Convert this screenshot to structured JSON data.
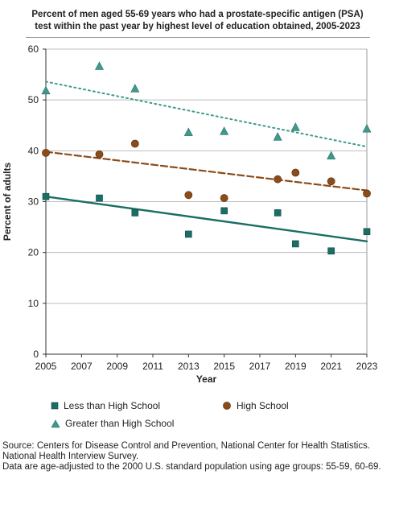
{
  "chart_data": {
    "type": "scatter",
    "title_lines": [
      "Percent of men aged 55-69 years who had a prostate-specific antigen (PSA)",
      "test within the past year by highest level of education obtained, 2005-2023"
    ],
    "xlabel": "Year",
    "ylabel": "Percent of adults",
    "xlim": [
      2005,
      2023
    ],
    "ylim": [
      0,
      60
    ],
    "x_ticks": [
      2005,
      2007,
      2009,
      2011,
      2013,
      2015,
      2017,
      2019,
      2021,
      2023
    ],
    "y_ticks": [
      0,
      10,
      20,
      30,
      40,
      50,
      60
    ],
    "grid": "horizontal",
    "legend_position": "bottom",
    "series": [
      {
        "name": "Less than High School",
        "marker": "square",
        "color": "#1a6e64",
        "trendline": "solid",
        "x": [
          2005,
          2008,
          2010,
          2013,
          2015,
          2018,
          2019,
          2021,
          2023
        ],
        "y": [
          31.0,
          30.7,
          27.8,
          23.6,
          28.2,
          27.8,
          21.7,
          20.3,
          24.1
        ],
        "trend": [
          31.0,
          22.2
        ]
      },
      {
        "name": "High School",
        "marker": "circle",
        "color": "#8b4c1a",
        "trendline": "dashed",
        "x": [
          2005,
          2008,
          2010,
          2013,
          2015,
          2018,
          2019,
          2021,
          2023
        ],
        "y": [
          39.6,
          39.3,
          41.4,
          31.3,
          30.7,
          34.4,
          35.7,
          34.0,
          31.6
        ],
        "trend": [
          39.8,
          32.2
        ]
      },
      {
        "name": "Greater than High School",
        "marker": "triangle",
        "color": "#3d9a8c",
        "trendline": "dotted",
        "x": [
          2005,
          2008,
          2010,
          2013,
          2015,
          2018,
          2019,
          2021,
          2023
        ],
        "y": [
          51.8,
          56.6,
          52.2,
          43.6,
          43.8,
          42.7,
          44.6,
          39.0,
          44.3
        ],
        "trend": [
          53.6,
          40.8
        ]
      }
    ]
  },
  "source": {
    "line1": "Source: Centers for Disease Control and Prevention, National Center for Health Statistics. National Health Interview Survey.",
    "line2": "Data are age-adjusted to the 2000 U.S. standard population using age groups: 55-59, 60-69."
  }
}
